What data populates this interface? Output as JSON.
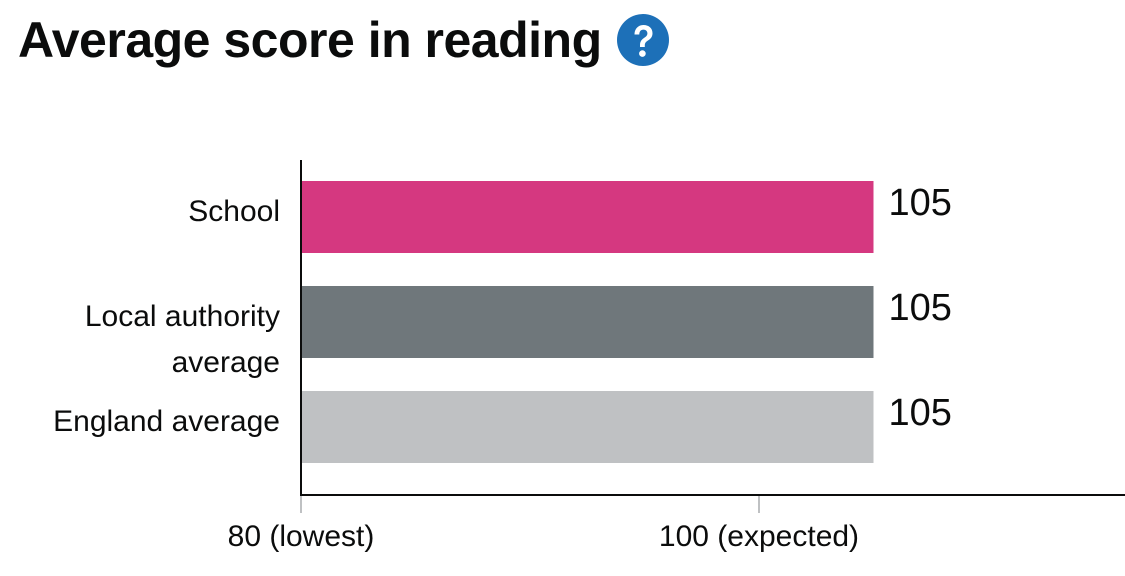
{
  "header": {
    "title": "Average score in reading",
    "help_icon": "question-mark-circle-icon",
    "help_icon_color": "#1d70b8"
  },
  "chart_data": {
    "type": "bar",
    "orientation": "horizontal",
    "title": "Average score in reading",
    "categories": [
      [
        "School"
      ],
      [
        "Local authority",
        "average"
      ],
      [
        "England average"
      ]
    ],
    "values": [
      105,
      105,
      105
    ],
    "data_labels": [
      "105",
      "105",
      "105"
    ],
    "colors": [
      "#d53880",
      "#6f777b",
      "#bfc1c3"
    ],
    "xlim": [
      80,
      110
    ],
    "x_ticks": [
      {
        "value": 80,
        "label": "80 (lowest)"
      },
      {
        "value": 100,
        "label": "100 (expected)"
      }
    ],
    "grid": false,
    "legend": "none"
  }
}
